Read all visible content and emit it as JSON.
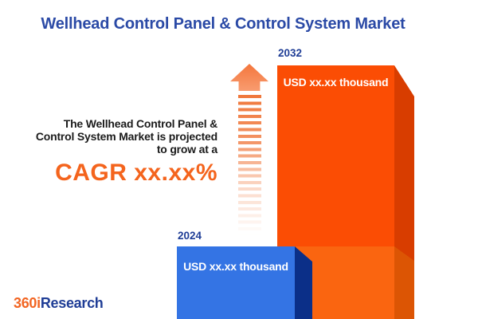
{
  "title": "Wellhead Control Panel & Control System Market",
  "description": {
    "line1": "The Wellhead Control Panel &",
    "line2": "Control System Market is projected",
    "line3": "to grow at a",
    "cagr": "CAGR xx.xx%"
  },
  "bars": {
    "bar2024": {
      "year": "2024",
      "value_label": "USD xx.xx thousand",
      "face_color": "#3474E4",
      "side_color": "#0B2F88"
    },
    "bar2032": {
      "year": "2032",
      "value_label": "USD xx.xx thousand",
      "face_color": "#FB4D04",
      "side_color": "#D83D00",
      "front_segment_color": "#FA6510"
    }
  },
  "icons": {
    "growth_arrow": "up-arrow-with-fading-dash-trail",
    "arrow_color": "#F4763C"
  },
  "logo": {
    "part1": "360i",
    "part2": "Research",
    "part1_color": "#F26522",
    "part2_color": "#1F3D96"
  },
  "accent_colors": {
    "title_blue": "#2B4AA6",
    "cagr_orange": "#F4641D",
    "year_label_navy": "#1F3D96"
  },
  "chart_data": {
    "type": "bar",
    "categories": [
      "2024",
      "2032"
    ],
    "values": [
      "xx.xx",
      "xx.xx"
    ],
    "unit": "USD thousand",
    "value_labels": [
      "USD xx.xx thousand",
      "USD xx.xx thousand"
    ],
    "bar_colors": [
      "#3474E4",
      "#FB4D04"
    ],
    "title": "Wellhead Control Panel & Control System Market",
    "xlabel": "",
    "ylabel": "",
    "legend": false,
    "grid": false,
    "annotations": [
      "The Wellhead Control Panel & Control System Market is projected to grow at a CAGR xx.xx%"
    ]
  }
}
